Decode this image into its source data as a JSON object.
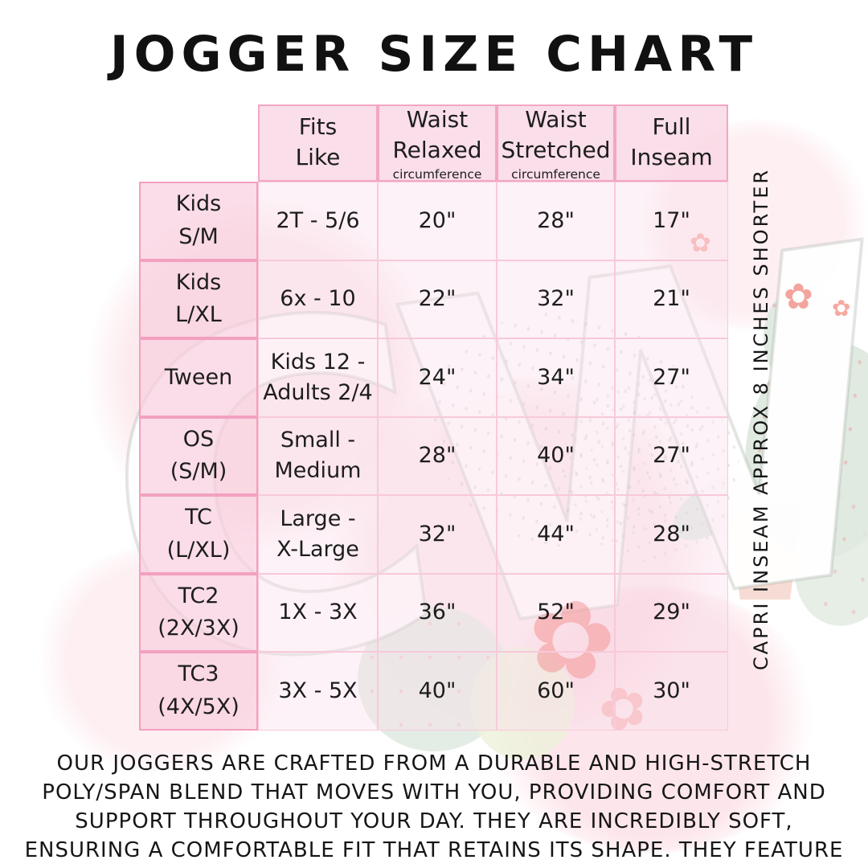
{
  "title": "JOGGER SIZE CHART",
  "table": {
    "headers": [
      {
        "label": "Fits\nLike",
        "sub": ""
      },
      {
        "label": "Waist\nRelaxed",
        "sub": "circumference"
      },
      {
        "label": "Waist\nStretched",
        "sub": "circumference"
      },
      {
        "label": "Full\nInseam",
        "sub": ""
      }
    ],
    "rows": [
      {
        "label": "Kids\nS/M",
        "fits": "2T - 5/6",
        "relaxed": "20\"",
        "stretched": "28\"",
        "inseam": "17\""
      },
      {
        "label": "Kids\nL/XL",
        "fits": "6x - 10",
        "relaxed": "22\"",
        "stretched": "32\"",
        "inseam": "21\""
      },
      {
        "label": "Tween",
        "fits": "Kids 12 -\nAdults 2/4",
        "relaxed": "24\"",
        "stretched": "34\"",
        "inseam": "27\""
      },
      {
        "label": "OS\n(S/M)",
        "fits": "Small -\nMedium",
        "relaxed": "28\"",
        "stretched": "40\"",
        "inseam": "27\""
      },
      {
        "label": "TC\n(L/XL)",
        "fits": "Large -\nX-Large",
        "relaxed": "32\"",
        "stretched": "44\"",
        "inseam": "28\""
      },
      {
        "label": "TC2\n(2X/3X)",
        "fits": "1X - 3X",
        "relaxed": "36\"",
        "stretched": "52\"",
        "inseam": "29\""
      },
      {
        "label": "TC3\n(4X/5X)",
        "fits": "3X - 5X",
        "relaxed": "40\"",
        "stretched": "60\"",
        "inseam": "30\""
      }
    ]
  },
  "side_note": "CAPRI INSEAM APPROX 8 INCHES SHORTER",
  "description": "OUR JOGGERS ARE CRAFTED FROM A DURABLE AND HIGH-STRETCH\nPOLY/SPAN BLEND THAT MOVES WITH YOU, PROVIDING COMFORT AND\nSUPPORT THROUGHOUT YOUR DAY. THEY ARE INCREDIBLY SOFT,\nENSURING A COMFORTABLE FIT THAT RETAINS ITS SHAPE. THEY FEATURE\nPOCKETS AND A DRAWSTRING WAIST.",
  "watermark": {
    "monogram": "CW",
    "flower_glyph": "✿"
  },
  "colors": {
    "background": "#ffffff",
    "text": "#1d1d1d",
    "header_fill": "#fce7ef",
    "row_label_fill": "#fbe0eb",
    "data_cell_fill": "#fdf2f6",
    "strong_border": "#f3a0bf",
    "light_border": "#f8c9da",
    "watermark_sage": "#e0eae1",
    "watermark_red_flower": "#ee584d",
    "watermark_coral_flower": "#f2958d",
    "watermark_pink_splash": "#f8ccd6",
    "watermark_outline_gray": "#aab4ac"
  }
}
